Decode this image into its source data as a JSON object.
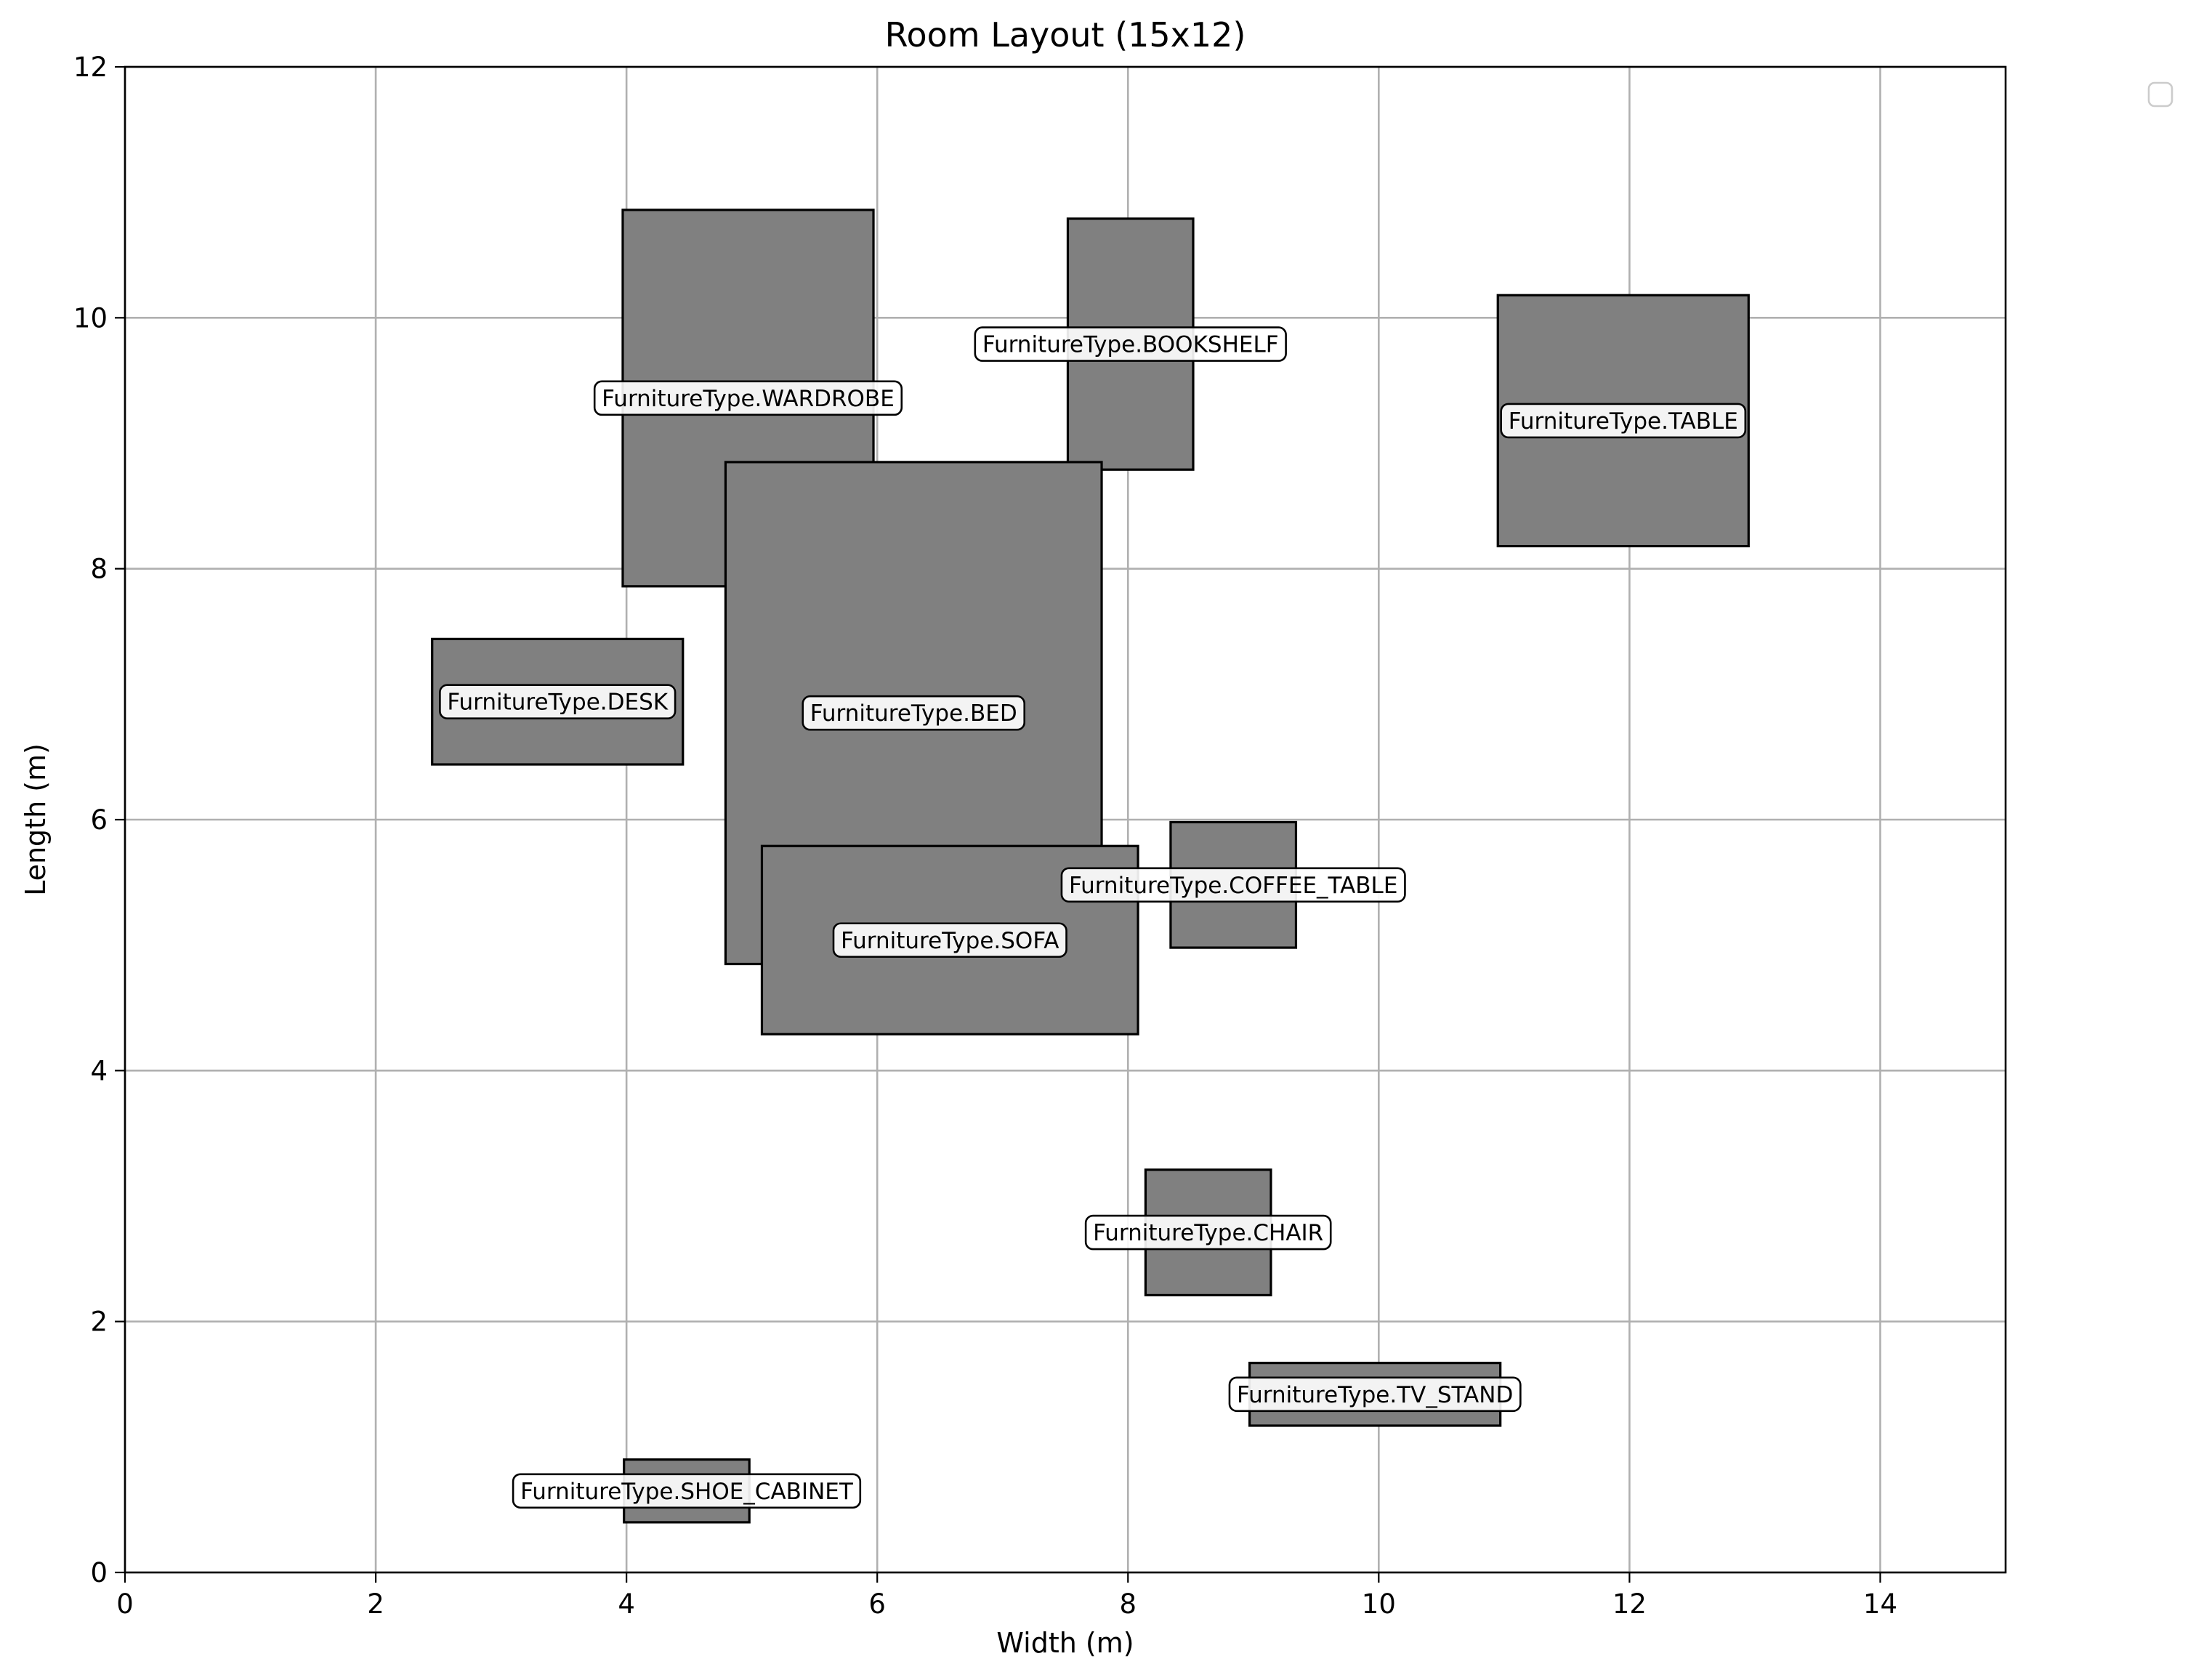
{
  "chart_data": {
    "type": "rectangles",
    "title": "Room Layout (15x12)",
    "xlabel": "Width (m)",
    "ylabel": "Length (m)",
    "xlim": [
      0,
      15
    ],
    "ylim": [
      0,
      12
    ],
    "x_ticks": [
      0,
      2,
      4,
      6,
      8,
      10,
      12,
      14
    ],
    "y_ticks": [
      0,
      2,
      4,
      6,
      8,
      10,
      12
    ],
    "grid": true,
    "legend": "top-right (empty)",
    "fill_color": "#808080",
    "edge_color": "#000000",
    "items": [
      {
        "label": "FurnitureType.WARDROBE",
        "x": 3.97,
        "y": 7.86,
        "width": 2.0,
        "height": 3.0
      },
      {
        "label": "FurnitureType.BOOKSHELF",
        "x": 7.52,
        "y": 8.79,
        "width": 1.0,
        "height": 2.0
      },
      {
        "label": "FurnitureType.TABLE",
        "x": 10.95,
        "y": 8.18,
        "width": 2.0,
        "height": 2.0
      },
      {
        "label": "FurnitureType.BED",
        "x": 4.79,
        "y": 4.85,
        "width": 3.0,
        "height": 4.0
      },
      {
        "label": "FurnitureType.DESK",
        "x": 2.45,
        "y": 6.44,
        "width": 2.0,
        "height": 1.0
      },
      {
        "label": "FurnitureType.SOFA",
        "x": 5.08,
        "y": 4.29,
        "width": 3.0,
        "height": 1.5
      },
      {
        "label": "FurnitureType.COFFEE_TABLE",
        "x": 8.34,
        "y": 4.98,
        "width": 1.0,
        "height": 1.0
      },
      {
        "label": "FurnitureType.CHAIR",
        "x": 8.14,
        "y": 2.21,
        "width": 1.0,
        "height": 1.0
      },
      {
        "label": "FurnitureType.TV_STAND",
        "x": 8.97,
        "y": 1.17,
        "width": 2.0,
        "height": 0.5
      },
      {
        "label": "FurnitureType.SHOE_CABINET",
        "x": 3.98,
        "y": 0.4,
        "width": 1.0,
        "height": 0.5
      }
    ]
  }
}
